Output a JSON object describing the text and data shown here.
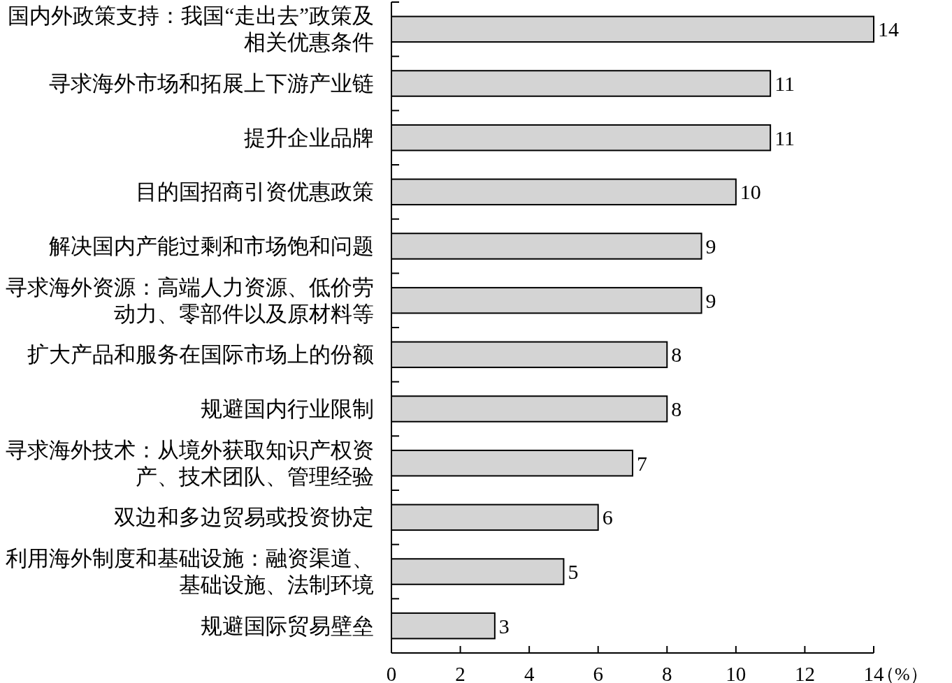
{
  "chart_data": {
    "type": "bar",
    "orientation": "horizontal",
    "categories": [
      "国内外政策支持：我国“走出去”政策及相关优惠条件",
      "寻求海外市场和拓展上下游产业链",
      "提升企业品牌",
      "目的国招商引资优惠政策",
      "解决国内产能过剩和市场饱和问题",
      "寻求海外资源：高端人力资源、低价劳动力、零部件以及原材料等",
      "扩大产品和服务在国际市场上的份额",
      "规避国内行业限制",
      "寻求海外技术：从境外获取知识产权资产、技术团队、管理经验",
      "双边和多边贸易或投资协定",
      "利用海外制度和基础设施：融资渠道、基础设施、法制环境",
      "规避国际贸易壁垒"
    ],
    "values": [
      14,
      11,
      11,
      10,
      9,
      9,
      8,
      8,
      7,
      6,
      5,
      3
    ],
    "color": "#d4d4d4",
    "xlim": [
      0,
      14
    ],
    "xticks": [
      0,
      2,
      4,
      6,
      8,
      10,
      12,
      14
    ],
    "xlabel": "（%）",
    "data_labels": true
  }
}
